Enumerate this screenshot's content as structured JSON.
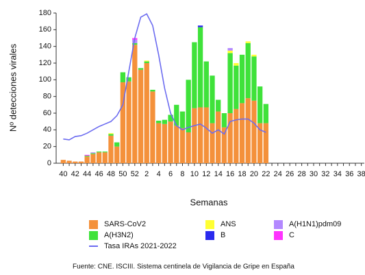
{
  "chart_data": {
    "type": "bar",
    "stacked": true,
    "xlabel": "Semanas",
    "ylabel": "Nº detecciones virales",
    "source": "Fuente: CNE. ISCIII. Sistema centinela de Vigilancia de Gripe en España",
    "categories": [
      "40",
      null,
      "42",
      null,
      "44",
      null,
      "46",
      null,
      "48",
      null,
      "50",
      null,
      "52",
      null,
      "2",
      null,
      "4",
      null,
      "6",
      null,
      "8",
      null,
      "10",
      null,
      "12",
      null,
      "14",
      null,
      "16",
      null,
      "18",
      null,
      "20",
      null,
      "22",
      null,
      "24",
      null,
      "26",
      null,
      "28",
      null,
      "30",
      null,
      "32",
      null,
      "34",
      null,
      "36",
      null,
      "38"
    ],
    "ylim": [
      0,
      180
    ],
    "yticks": [
      0,
      20,
      40,
      60,
      80,
      100,
      120,
      140,
      160,
      180
    ],
    "series": [
      {
        "name": "SARS-CoV2",
        "color": "#f4913b",
        "values": [
          4,
          3,
          2,
          2,
          8,
          11,
          13,
          13,
          33,
          20,
          97,
          98,
          142,
          112,
          120,
          86,
          48,
          47,
          50,
          45,
          42,
          37,
          66,
          67,
          67,
          48,
          62,
          43,
          60,
          65,
          72,
          78,
          75,
          48,
          48,
          null,
          null,
          null,
          null,
          null,
          null,
          null,
          null,
          null,
          null,
          null,
          null,
          null,
          null,
          null,
          null
        ]
      },
      {
        "name": "A(H3N2)",
        "color": "#3fe23a",
        "values": [
          0,
          0,
          0,
          0,
          1,
          1,
          1,
          1,
          2,
          5,
          12,
          5,
          2,
          2,
          2,
          2,
          3,
          5,
          8,
          25,
          20,
          63,
          79,
          96,
          55,
          57,
          14,
          17,
          72,
          52,
          58,
          66,
          53,
          44,
          23,
          null,
          null,
          null,
          null,
          null,
          null,
          null,
          null,
          null,
          null,
          null,
          null,
          null,
          null,
          null,
          null
        ]
      },
      {
        "name": "ANS",
        "color": "#ffff33",
        "values": [
          0,
          0,
          0,
          0,
          0,
          0,
          0,
          0,
          1,
          0,
          0,
          0,
          0,
          0,
          1,
          0,
          0,
          0,
          0,
          0,
          0,
          0,
          0,
          0,
          0,
          0,
          0,
          0,
          3,
          3,
          0,
          2,
          2,
          0,
          0,
          null,
          null,
          null,
          null,
          null,
          null,
          null,
          null,
          null,
          null,
          null,
          null,
          null,
          null,
          null,
          null
        ]
      },
      {
        "name": "B",
        "color": "#2a2aee",
        "values": [
          0,
          0,
          0,
          0,
          0,
          0,
          0,
          0,
          0,
          0,
          0,
          0,
          0,
          0,
          0,
          0,
          0,
          0,
          0,
          0,
          0,
          0,
          0,
          2,
          0,
          0,
          0,
          0,
          0,
          0,
          0,
          0,
          0,
          0,
          0,
          null,
          null,
          null,
          null,
          null,
          null,
          null,
          null,
          null,
          null,
          null,
          null,
          null,
          null,
          null,
          null
        ]
      },
      {
        "name": "A(H1N1)pdm09",
        "color": "#b388ff",
        "values": [
          0,
          0,
          0,
          0,
          0,
          1,
          0,
          0,
          0,
          0,
          0,
          0,
          4,
          0,
          0,
          0,
          0,
          0,
          0,
          0,
          0,
          0,
          0,
          0,
          0,
          0,
          0,
          0,
          3,
          0,
          0,
          0,
          0,
          0,
          0,
          null,
          null,
          null,
          null,
          null,
          null,
          null,
          null,
          null,
          null,
          null,
          null,
          null,
          null,
          null,
          null
        ]
      },
      {
        "name": "C",
        "color": "#ff33ff",
        "values": [
          0,
          0,
          0,
          0,
          1,
          0,
          0,
          0,
          0,
          0,
          0,
          0,
          2,
          0,
          0,
          0,
          0,
          0,
          0,
          0,
          0,
          0,
          0,
          0,
          0,
          0,
          0,
          0,
          0,
          0,
          0,
          0,
          0,
          0,
          0,
          null,
          null,
          null,
          null,
          null,
          null,
          null,
          null,
          null,
          null,
          null,
          null,
          null,
          null,
          null,
          null
        ]
      }
    ],
    "line": {
      "name": "Tasa IRAs 2021-2022",
      "color": "#6b6bf0",
      "values": [
        29,
        28,
        32,
        33,
        36,
        40,
        44,
        47,
        50,
        57,
        70,
        110,
        150,
        175,
        179,
        165,
        130,
        90,
        60,
        45,
        40,
        43,
        45,
        47,
        42,
        36,
        40,
        35,
        50,
        52,
        53,
        53,
        48,
        40,
        37,
        null,
        null,
        null,
        null,
        null,
        null,
        null,
        null,
        null,
        null,
        null,
        null,
        null,
        null,
        null,
        null
      ]
    }
  }
}
